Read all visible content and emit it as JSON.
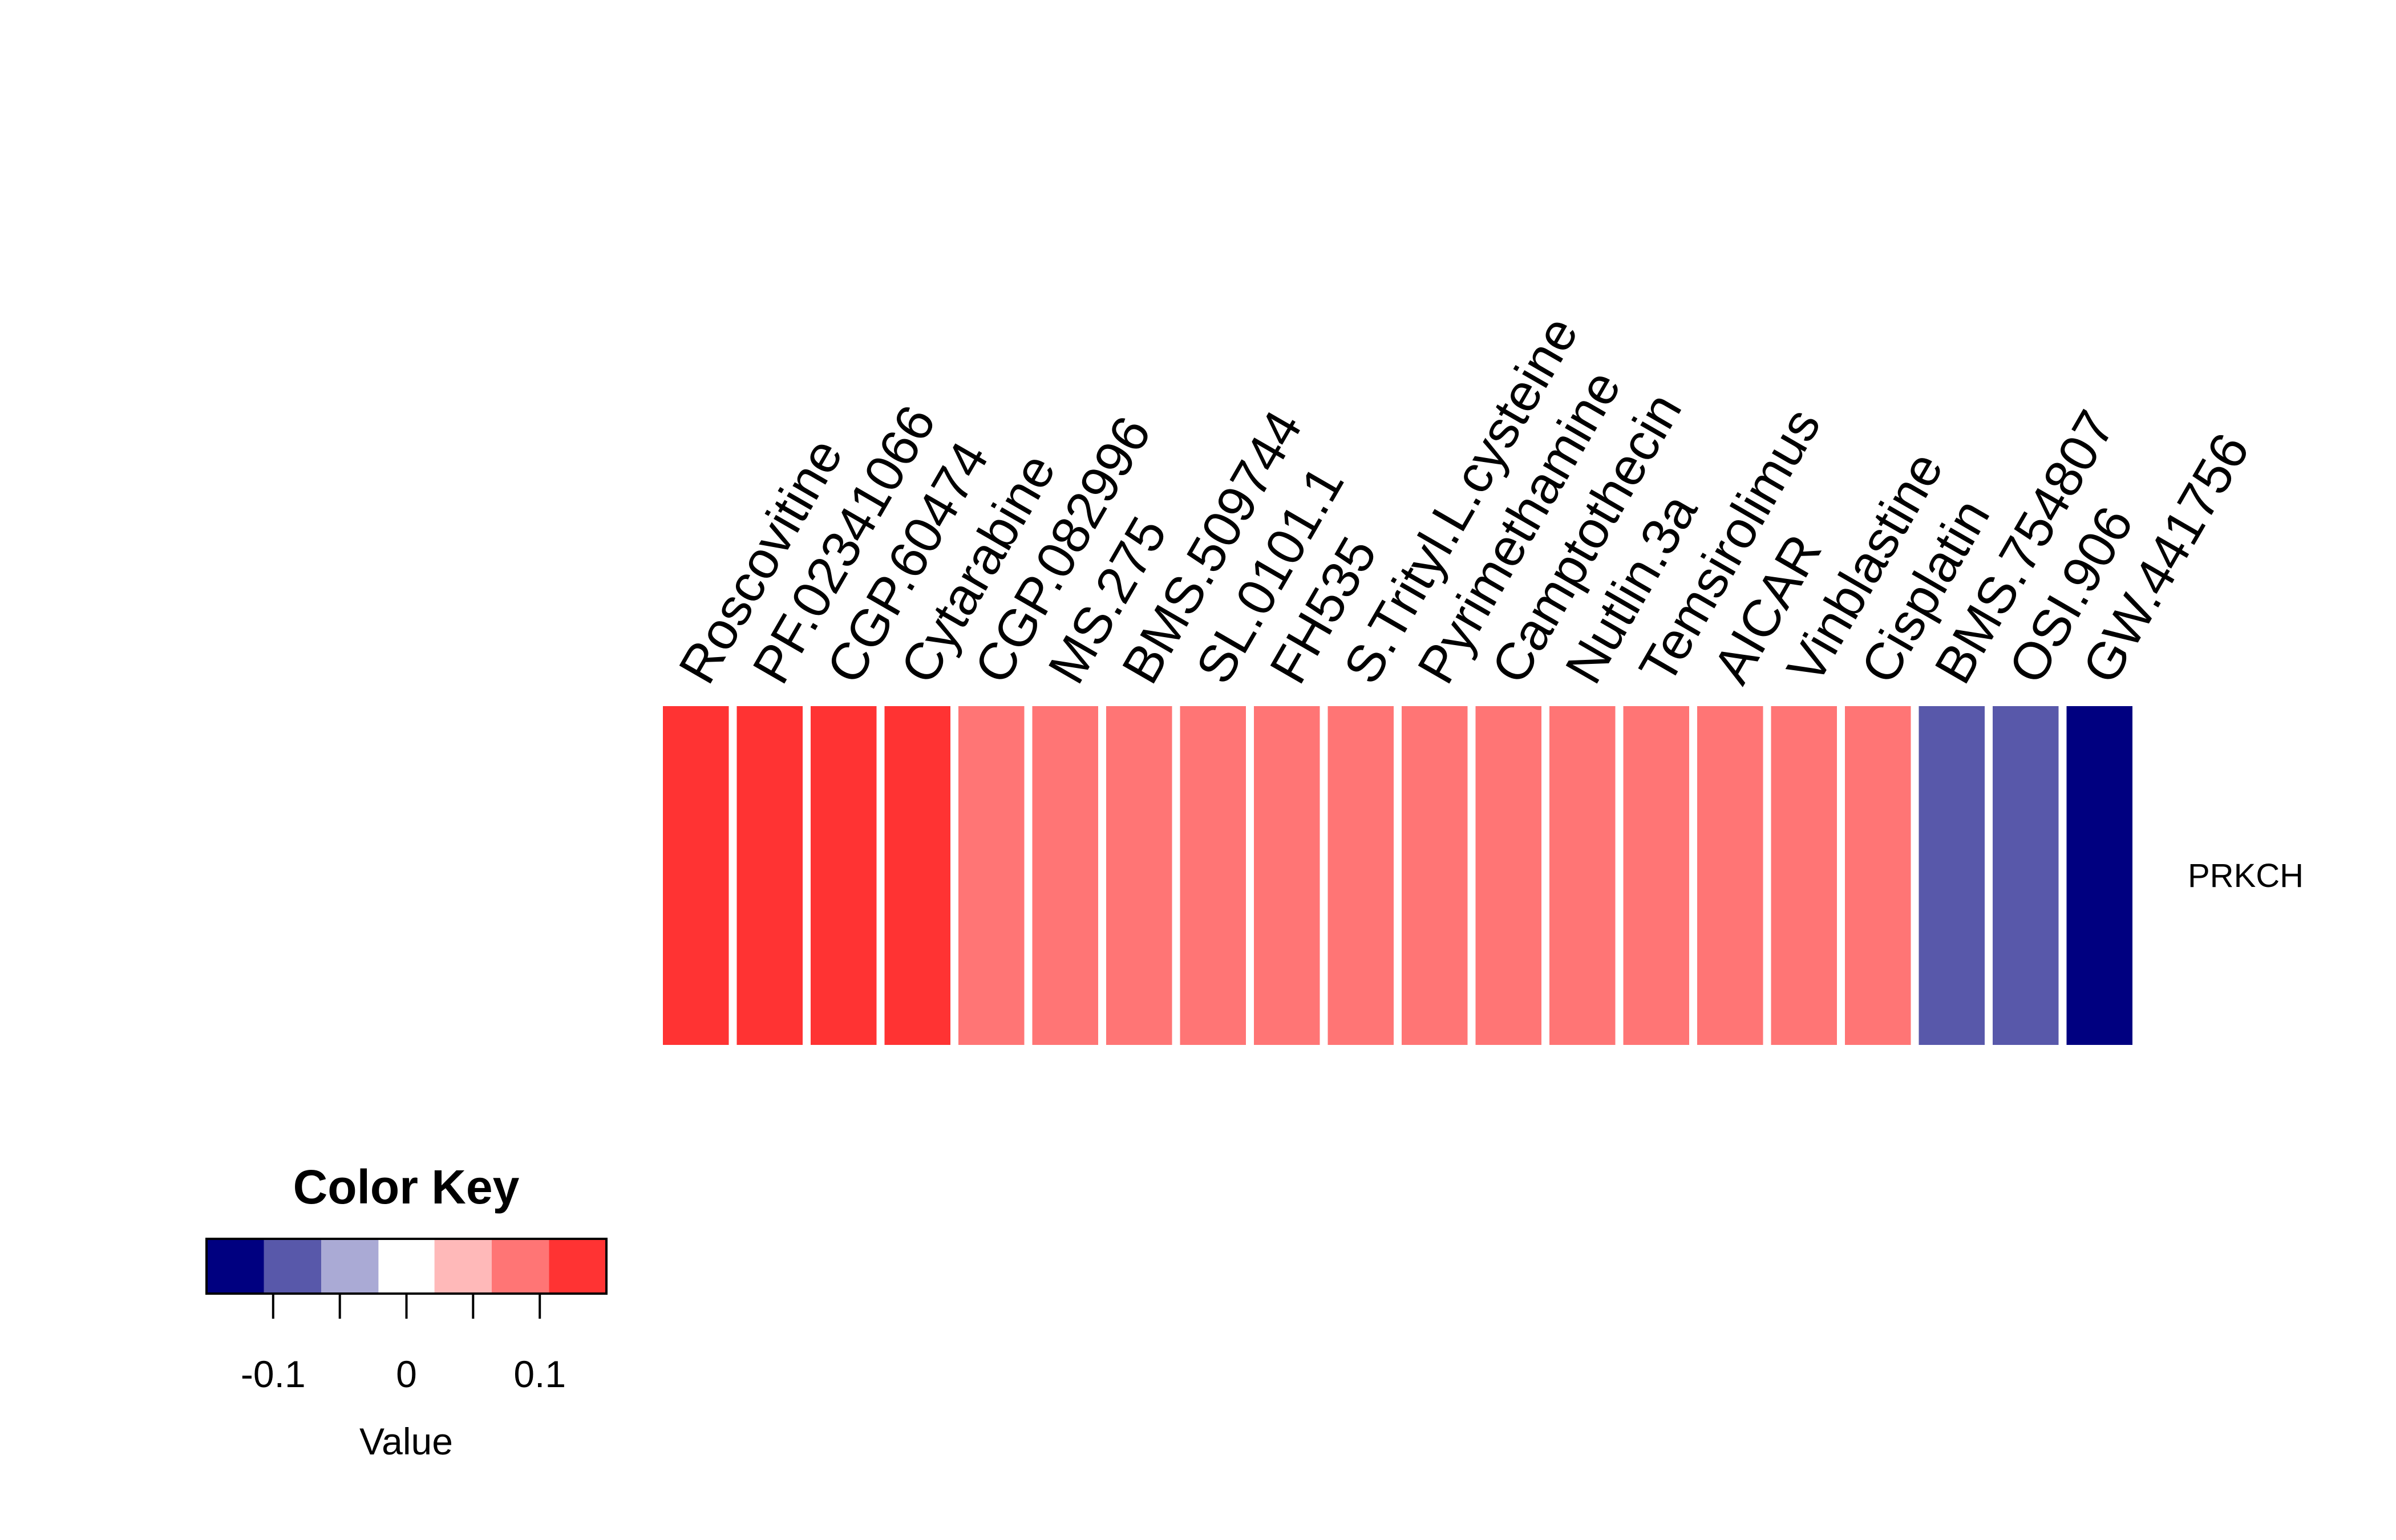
{
  "chart_data": {
    "type": "heatmap",
    "rows": [
      "PRKCH"
    ],
    "columns": [
      "Roscovitine",
      "PF.02341066",
      "CGP.60474",
      "Cytarabine",
      "CGP.082996",
      "MS.275",
      "BMS.509744",
      "SL.0101.1",
      "FH535",
      "S.Trityl.L.cysteine",
      "Pyrimethamine",
      "Camptothecin",
      "Nutlin.3a",
      "Temsirolimus",
      "AICAR",
      "Vinblastine",
      "Cisplatin",
      "BMS.754807",
      "OSI.906",
      "GW.441756"
    ],
    "values": [
      [
        0.13,
        0.13,
        0.13,
        0.13,
        0.08,
        0.08,
        0.08,
        0.08,
        0.08,
        0.08,
        0.08,
        0.08,
        0.08,
        0.08,
        0.08,
        0.08,
        0.08,
        -0.08,
        -0.08,
        -0.13
      ]
    ],
    "color_key": {
      "title": "Color Key",
      "xlabel": "Value",
      "range": [
        -0.15,
        0.15
      ],
      "ticks": [
        -0.1,
        -0.05,
        0,
        0.05,
        0.1
      ],
      "tick_labels": [
        "-0.1",
        "0",
        "0.1"
      ],
      "tick_label_values": [
        -0.1,
        0,
        0.1
      ],
      "breaks": [
        -0.15,
        -0.107,
        -0.064,
        -0.021,
        0.021,
        0.064,
        0.107,
        0.15
      ],
      "colors": [
        "#000080",
        "#5858AA",
        "#AAAAD5",
        "#FFFFFF",
        "#FFB9B9",
        "#FF7575",
        "#FF3333"
      ]
    }
  }
}
